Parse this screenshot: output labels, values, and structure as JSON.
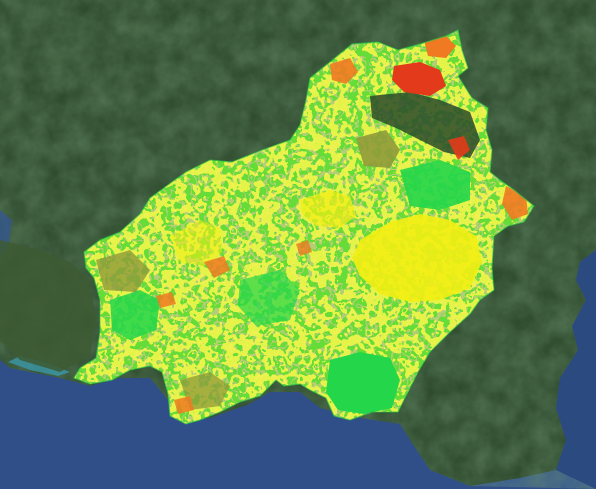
{
  "map": {
    "basemap": "satellite",
    "overlay": "land-cover-classification",
    "colors": {
      "ocean_deep": "#2f4f86",
      "ocean_shallow": "#4a6fa8",
      "coast_turquoise": "#3aa0b8",
      "forest_dark": "#1f3a22",
      "forest_mid": "#2e4d2c",
      "forest_light": "#3f5f36",
      "class_green": "#23d64a",
      "class_yellowgreen": "#9fe12b",
      "class_yellow": "#f2ee13",
      "class_olive": "#8f9a3a",
      "class_orange": "#ef7a22",
      "class_red": "#e23a1a",
      "class_darkgreen": "#2a4a2a"
    }
  }
}
